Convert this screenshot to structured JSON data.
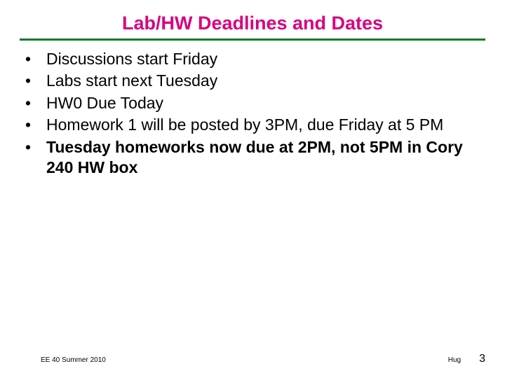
{
  "title": "Lab/HW Deadlines and Dates",
  "title_color": "#d80080",
  "rule_color": "#0a7a2a",
  "bullet_items": [
    {
      "text": "Discussions start Friday",
      "bold": false
    },
    {
      "text": "Labs start next Tuesday",
      "bold": false
    },
    {
      "text": "HW0 Due Today",
      "bold": false
    },
    {
      "text": "Homework 1 will be posted by 3PM, due Friday at 5 PM",
      "bold": false
    },
    {
      "text": "Tuesday homeworks now due at 2PM, not 5PM in Cory 240 HW box",
      "bold": true
    }
  ],
  "footer_left": "EE 40 Summer 2010",
  "footer_center_right": "Hug",
  "page_number": "3",
  "text_color": "#000000",
  "background_color": "#ffffff",
  "slide_width": 720,
  "slide_height": 540
}
